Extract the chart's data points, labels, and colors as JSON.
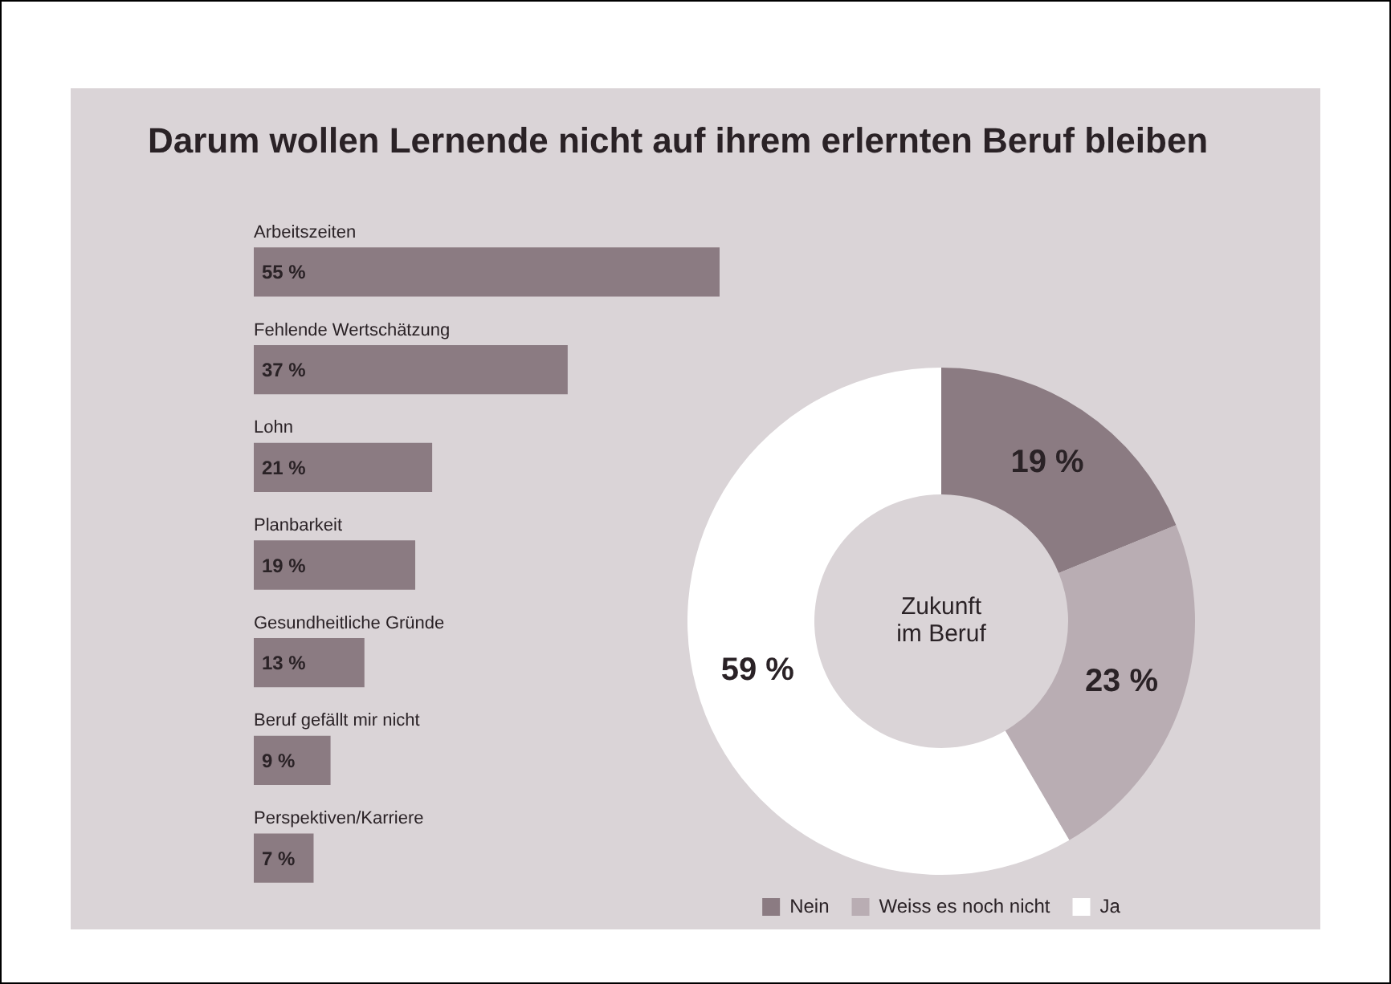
{
  "chart_data": [
    {
      "type": "bar",
      "orientation": "horizontal",
      "title": "Darum wollen Lernende nicht auf ihrem erlernten Beruf bleiben",
      "categories": [
        "Arbeitszeiten",
        "Fehlende Wertschätzung",
        "Lohn",
        "Planbarkeit",
        "Gesundheitliche Gründe",
        "Beruf gefällt mir nicht",
        "Perspektiven/Karriere"
      ],
      "values": [
        55,
        37,
        21,
        19,
        13,
        9,
        7
      ],
      "value_labels": [
        "55 %",
        "37 %",
        "21 %",
        "19 %",
        "13 %",
        "9 %",
        "7 %"
      ],
      "color": "#8b7b82"
    },
    {
      "type": "donut",
      "categories": [
        "Nein",
        "Weiss es noch nicht",
        "Ja"
      ],
      "values": [
        19,
        23,
        59
      ],
      "value_labels": [
        "19 %",
        "23 %",
        "59 %"
      ],
      "colors": [
        "#8b7b82",
        "#b9adb3",
        "#ffffff"
      ],
      "legend": "bottom",
      "annotations": [
        "Zukunft im Beruf"
      ]
    }
  ]
}
